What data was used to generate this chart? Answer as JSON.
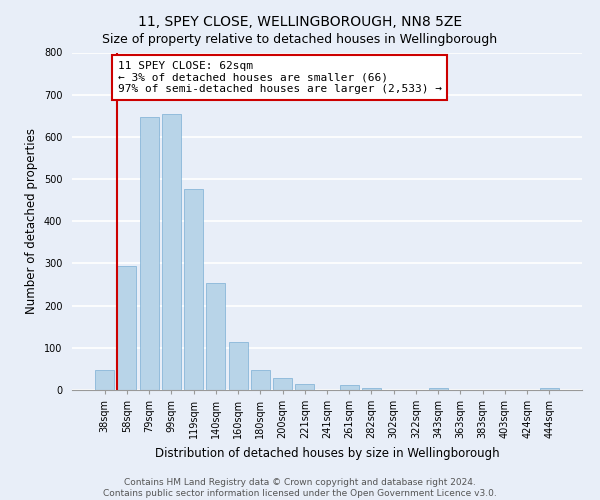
{
  "title": "11, SPEY CLOSE, WELLINGBOROUGH, NN8 5ZE",
  "subtitle": "Size of property relative to detached houses in Wellingborough",
  "xlabel": "Distribution of detached houses by size in Wellingborough",
  "ylabel": "Number of detached properties",
  "bar_labels": [
    "38sqm",
    "58sqm",
    "79sqm",
    "99sqm",
    "119sqm",
    "140sqm",
    "160sqm",
    "180sqm",
    "200sqm",
    "221sqm",
    "241sqm",
    "261sqm",
    "282sqm",
    "302sqm",
    "322sqm",
    "343sqm",
    "363sqm",
    "383sqm",
    "403sqm",
    "424sqm",
    "444sqm"
  ],
  "bar_heights": [
    47,
    295,
    648,
    655,
    477,
    253,
    113,
    48,
    28,
    15,
    0,
    12,
    5,
    0,
    0,
    5,
    0,
    0,
    0,
    0,
    5
  ],
  "bar_color": "#b8d4e8",
  "marker_color": "#cc0000",
  "annotation_line1": "11 SPEY CLOSE: 62sqm",
  "annotation_line2": "← 3% of detached houses are smaller (66)",
  "annotation_line3": "97% of semi-detached houses are larger (2,533) →",
  "annotation_box_color": "#ffffff",
  "annotation_box_edge_color": "#cc0000",
  "ylim": [
    0,
    800
  ],
  "yticks": [
    0,
    100,
    200,
    300,
    400,
    500,
    600,
    700,
    800
  ],
  "footnote1": "Contains HM Land Registry data © Crown copyright and database right 2024.",
  "footnote2": "Contains public sector information licensed under the Open Government Licence v3.0.",
  "bg_color": "#e8eef8",
  "grid_color": "#ffffff",
  "title_fontsize": 10,
  "subtitle_fontsize": 9,
  "tick_fontsize": 7,
  "label_fontsize": 8.5,
  "footnote_fontsize": 6.5
}
